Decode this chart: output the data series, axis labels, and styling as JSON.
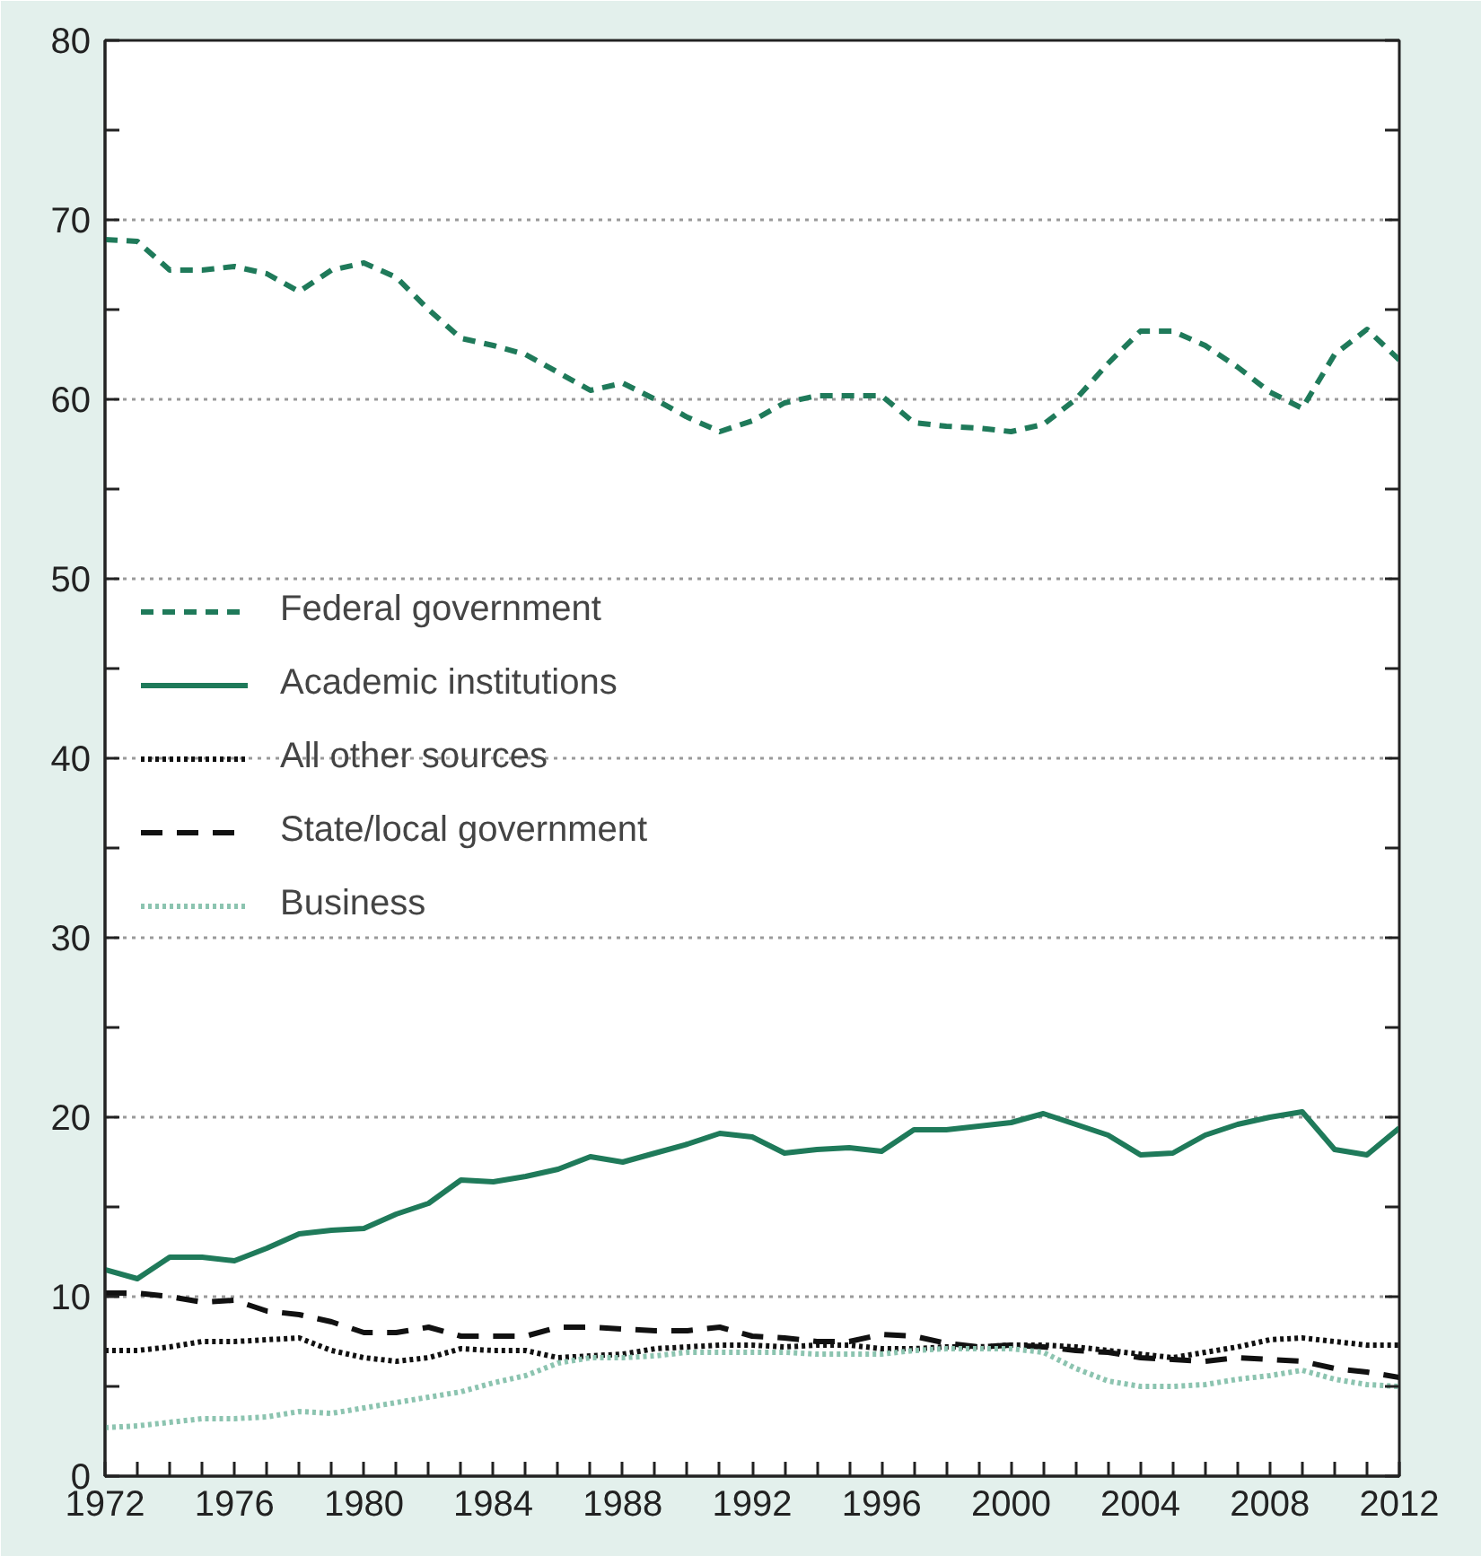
{
  "chart_data": {
    "type": "line",
    "x": [
      1972,
      1973,
      1974,
      1975,
      1976,
      1977,
      1978,
      1979,
      1980,
      1981,
      1982,
      1983,
      1984,
      1985,
      1986,
      1987,
      1988,
      1989,
      1990,
      1991,
      1992,
      1993,
      1994,
      1995,
      1996,
      1997,
      1998,
      1999,
      2000,
      2001,
      2002,
      2003,
      2004,
      2005,
      2006,
      2007,
      2008,
      2009,
      2010,
      2011,
      2012
    ],
    "series": [
      {
        "name": "Federal government",
        "color": "#1f7a5a",
        "line_style": "dashed",
        "values": [
          68.9,
          68.8,
          67.2,
          67.2,
          67.4,
          67.0,
          66.0,
          67.2,
          67.6,
          66.8,
          65.0,
          63.4,
          63.0,
          62.5,
          61.5,
          60.5,
          60.9,
          60.0,
          59.0,
          58.2,
          58.8,
          59.8,
          60.2,
          60.2,
          60.2,
          58.7,
          58.5,
          58.4,
          58.2,
          58.6,
          60.0,
          62.0,
          63.8,
          63.8,
          63.0,
          61.8,
          60.4,
          59.5,
          62.5,
          63.9,
          62.2
        ]
      },
      {
        "name": "Academic institutions",
        "color": "#1f7a5a",
        "line_style": "solid",
        "values": [
          11.5,
          11.0,
          12.2,
          12.2,
          12.0,
          12.7,
          13.5,
          13.7,
          13.8,
          14.6,
          15.2,
          16.5,
          16.4,
          16.7,
          17.1,
          17.8,
          17.5,
          18.0,
          18.5,
          19.1,
          18.9,
          18.0,
          18.2,
          18.3,
          18.1,
          19.3,
          19.3,
          19.5,
          19.7,
          20.2,
          19.6,
          19.0,
          17.9,
          18.0,
          19.0,
          19.6,
          20.0,
          20.3,
          18.2,
          17.9,
          19.4
        ]
      },
      {
        "name": "All other sources",
        "color": "#111111",
        "line_style": "dotted",
        "values": [
          7.0,
          7.0,
          7.2,
          7.5,
          7.5,
          7.6,
          7.7,
          7.0,
          6.6,
          6.4,
          6.6,
          7.1,
          7.0,
          7.0,
          6.6,
          6.7,
          6.8,
          7.1,
          7.2,
          7.3,
          7.3,
          7.2,
          7.3,
          7.3,
          7.1,
          7.1,
          7.2,
          7.2,
          7.3,
          7.3,
          7.2,
          7.0,
          6.8,
          6.6,
          6.9,
          7.2,
          7.6,
          7.7,
          7.5,
          7.3,
          7.3
        ]
      },
      {
        "name": "State/local government",
        "color": "#111111",
        "line_style": "dashed",
        "values": [
          10.2,
          10.2,
          10.0,
          9.7,
          9.8,
          9.2,
          9.0,
          8.6,
          8.0,
          8.0,
          8.3,
          7.8,
          7.8,
          7.8,
          8.3,
          8.3,
          8.2,
          8.1,
          8.1,
          8.3,
          7.8,
          7.7,
          7.5,
          7.5,
          7.9,
          7.8,
          7.4,
          7.2,
          7.3,
          7.2,
          7.0,
          6.9,
          6.6,
          6.5,
          6.4,
          6.6,
          6.5,
          6.4,
          6.0,
          5.8,
          5.5
        ]
      },
      {
        "name": "Business",
        "color": "#8cc4b0",
        "line_style": "dotted",
        "values": [
          2.7,
          2.8,
          3.0,
          3.2,
          3.2,
          3.3,
          3.6,
          3.5,
          3.8,
          4.1,
          4.4,
          4.7,
          5.2,
          5.6,
          6.3,
          6.6,
          6.6,
          6.7,
          6.9,
          6.9,
          6.9,
          6.9,
          6.8,
          6.8,
          6.8,
          7.0,
          7.1,
          7.1,
          7.1,
          6.9,
          6.0,
          5.3,
          5.0,
          5.0,
          5.1,
          5.4,
          5.6,
          5.9,
          5.4,
          5.1,
          5.0
        ]
      }
    ],
    "xlim": [
      1972,
      2012
    ],
    "xticks": [
      1972,
      {
        "value": 1973,
        "label": null
      },
      {
        "value": 1974,
        "label": null
      },
      {
        "value": 1975,
        "label": null
      },
      1976,
      {
        "value": 1977,
        "label": null
      },
      {
        "value": 1978,
        "label": null
      },
      {
        "value": 1979,
        "label": null
      },
      1980,
      {
        "value": 1981,
        "label": null
      },
      {
        "value": 1982,
        "label": null
      },
      {
        "value": 1983,
        "label": null
      },
      1984,
      {
        "value": 1985,
        "label": null
      },
      {
        "value": 1986,
        "label": null
      },
      {
        "value": 1987,
        "label": null
      },
      1988,
      {
        "value": 1989,
        "label": null
      },
      {
        "value": 1990,
        "label": null
      },
      {
        "value": 1991,
        "label": null
      },
      1992,
      {
        "value": 1993,
        "label": null
      },
      {
        "value": 1994,
        "label": null
      },
      {
        "value": 1995,
        "label": null
      },
      1996,
      {
        "value": 1997,
        "label": null
      },
      {
        "value": 1998,
        "label": null
      },
      {
        "value": 1999,
        "label": null
      },
      2000,
      {
        "value": 2001,
        "label": null
      },
      {
        "value": 2002,
        "label": null
      },
      {
        "value": 2003,
        "label": null
      },
      2004,
      {
        "value": 2005,
        "label": null
      },
      {
        "value": 2006,
        "label": null
      },
      {
        "value": 2007,
        "label": null
      },
      2008,
      {
        "value": 2009,
        "label": null
      },
      {
        "value": 2010,
        "label": null
      },
      {
        "value": 2011,
        "label": null
      },
      2012
    ],
    "ylim": [
      0,
      80
    ],
    "yticks": [
      0,
      {
        "value": 5,
        "label": null
      },
      10,
      {
        "value": 15,
        "label": null
      },
      20,
      {
        "value": 25,
        "label": null
      },
      30,
      {
        "value": 35,
        "label": null
      },
      40,
      {
        "value": 45,
        "label": null
      },
      50,
      {
        "value": 55,
        "label": null
      },
      60,
      {
        "value": 65,
        "label": null
      },
      70,
      {
        "value": 75,
        "label": null
      },
      80
    ],
    "grid": "y",
    "legend": "left",
    "marker": "none"
  }
}
